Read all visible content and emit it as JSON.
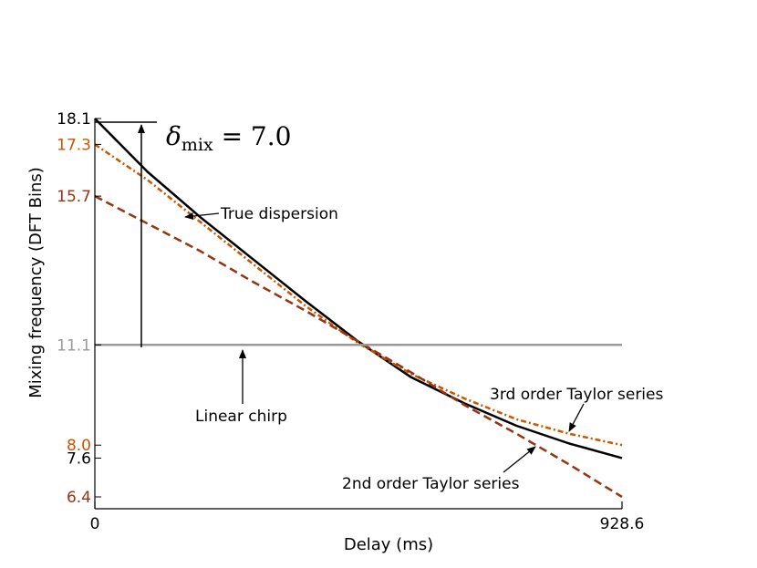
{
  "chart_data": {
    "type": "line",
    "xlabel": "Delay (ms)",
    "ylabel": "Mixing frequency (DFT Bins)",
    "xlim": [
      0,
      928.6
    ],
    "ylim": [
      6.4,
      18.1
    ],
    "x_ticks": [
      {
        "value": 0,
        "label": "0",
        "color": "#000000"
      },
      {
        "value": 928.6,
        "label": "928.6",
        "color": "#000000"
      }
    ],
    "y_ticks": [
      {
        "value": 18.1,
        "label": "18.1",
        "color": "#000000"
      },
      {
        "value": 17.3,
        "label": "17.3",
        "color": "#cc5500"
      },
      {
        "value": 15.7,
        "label": "15.7",
        "color": "#993311"
      },
      {
        "value": 11.1,
        "label": "11.1",
        "color": "#999999"
      },
      {
        "value": 8.0,
        "label": "8.0",
        "color": "#cc5500"
      },
      {
        "value": 7.6,
        "label": "7.6",
        "color": "#000000"
      },
      {
        "value": 6.4,
        "label": "6.4",
        "color": "#993311"
      }
    ],
    "grid": false,
    "series": [
      {
        "style": "solid",
        "color": "#000000",
        "x": [
          0,
          92.9,
          185.7,
          278.6,
          371.4,
          464.3,
          557.2,
          650.0,
          742.9,
          835.7,
          928.6
        ],
        "y": [
          18.1,
          16.45,
          15.05,
          13.75,
          12.45,
          11.2,
          10.1,
          9.3,
          8.6,
          8.05,
          7.6
        ]
      },
      {
        "style": "dotted",
        "color": "#cc5500",
        "x": [
          0,
          92.9,
          185.7,
          278.6,
          371.4,
          464.3,
          557.2,
          650.0,
          742.9,
          835.7,
          928.6
        ],
        "y": [
          17.3,
          16.2,
          14.9,
          13.6,
          12.3,
          11.15,
          10.2,
          9.45,
          8.8,
          8.35,
          8.0
        ]
      },
      {
        "style": "dashed",
        "color": "#993311",
        "x": [
          0,
          92.9,
          185.7,
          278.6,
          371.4,
          464.3,
          557.2,
          650.0,
          742.9,
          835.7,
          928.6
        ],
        "y": [
          15.7,
          14.85,
          14.0,
          13.05,
          12.15,
          11.2,
          10.25,
          9.25,
          8.35,
          7.4,
          6.4
        ]
      },
      {
        "style": "solid",
        "color": "#999999",
        "x": [
          0,
          928.6
        ],
        "y": [
          11.1,
          11.1
        ]
      }
    ],
    "annotations": [
      {
        "text": "True dispersion",
        "arrow_to": [
          170,
          16.0
        ]
      },
      {
        "text": "Linear chirp",
        "arrow_to": [
          285,
          11.1
        ]
      },
      {
        "text": "3rd order Taylor series",
        "arrow_to": [
          865,
          8.3
        ]
      },
      {
        "text": "2nd order Taylor series",
        "arrow_to": [
          790,
          8.1
        ]
      }
    ],
    "delta_arrow": {
      "x": 92,
      "from": 11.1,
      "to": 18.1
    },
    "delta_label": {
      "symbol": "δ",
      "subscript": "mix",
      "rest": " = 7.0"
    }
  }
}
